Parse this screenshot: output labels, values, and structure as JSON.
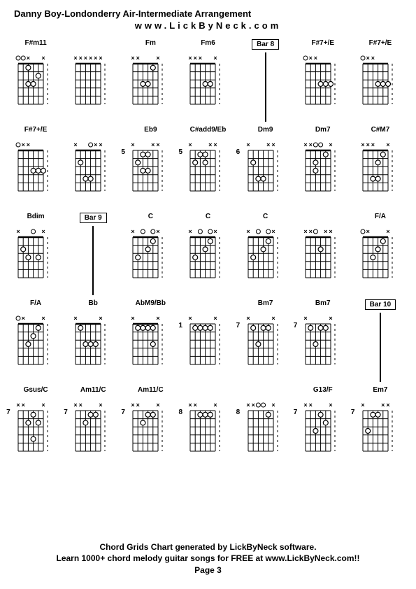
{
  "title": "Danny Boy-Londonderry Air-Intermediate Arrangement",
  "url": "www.LickByNeck.com",
  "footer_line1": "Chord Grids Chart generated by LickByNeck software.",
  "footer_line2": "Learn 1000+ chord melody guitar songs for FREE at www.LickByNeck.com!!",
  "page_label": "Page 3",
  "colors": {
    "bg": "#ffffff",
    "line": "#000000",
    "dot_fill": "#000000",
    "dot_stroke": "#000000",
    "open_fill": "#ffffff"
  },
  "diagram_style": {
    "strings": 6,
    "frets": 5,
    "width": 50,
    "height": 80,
    "dot_radius": 3.5,
    "stroke_width": 1
  },
  "cells": [
    {
      "type": "chord",
      "label": "F#m11",
      "fret": "",
      "mutes": [
        0,
        0,
        1,
        0,
        0,
        1
      ],
      "opens": [
        1,
        0
      ],
      "dots": [
        [
          1,
          2
        ],
        [
          2,
          4
        ],
        [
          3,
          2
        ],
        [
          3,
          3
        ]
      ]
    },
    {
      "type": "chord",
      "label": "",
      "fret": "",
      "mutes": [
        1,
        1,
        1,
        1,
        1,
        1
      ],
      "opens": [],
      "dots": []
    },
    {
      "type": "chord",
      "label": "Fm",
      "fret": "",
      "mutes": [
        1,
        1,
        0,
        0,
        0,
        1
      ],
      "opens": [],
      "dots": [
        [
          1,
          4
        ],
        [
          3,
          2
        ],
        [
          3,
          3
        ]
      ]
    },
    {
      "type": "chord",
      "label": "Fm6",
      "fret": "",
      "mutes": [
        1,
        1,
        1,
        0,
        0,
        1
      ],
      "opens": [],
      "dots": [
        [
          3,
          3
        ],
        [
          3,
          4
        ]
      ]
    },
    {
      "type": "bar",
      "label": "Bar 8"
    },
    {
      "type": "chord",
      "label": "F#7+/E",
      "fret": "",
      "mutes": [
        1,
        1,
        1,
        0,
        0,
        0
      ],
      "opens": [
        0
      ],
      "dots": [
        [
          3,
          3
        ],
        [
          3,
          4
        ],
        [
          3,
          5
        ]
      ]
    },
    {
      "type": "chord",
      "label": "F#7+/E",
      "fret": "",
      "mutes": [
        1,
        1,
        1,
        0,
        0,
        0
      ],
      "opens": [
        0
      ],
      "dots": [
        [
          3,
          3
        ],
        [
          3,
          4
        ],
        [
          3,
          5
        ]
      ]
    },
    {
      "type": "chord",
      "label": "F#7+/E",
      "fret": "",
      "mutes": [
        1,
        1,
        1,
        0,
        0,
        0
      ],
      "opens": [
        0
      ],
      "dots": [
        [
          3,
          3
        ],
        [
          3,
          4
        ],
        [
          3,
          5
        ]
      ]
    },
    {
      "type": "chord",
      "label": "",
      "fret": "",
      "mutes": [
        1,
        0,
        0,
        0,
        1,
        1
      ],
      "opens": [
        3
      ],
      "dots": [
        [
          2,
          1
        ],
        [
          4,
          2
        ],
        [
          4,
          3
        ]
      ]
    },
    {
      "type": "chord",
      "label": "Eb9",
      "fret": "5",
      "mutes": [
        1,
        0,
        0,
        0,
        1,
        1
      ],
      "opens": [],
      "dots": [
        [
          1,
          2
        ],
        [
          1,
          3
        ],
        [
          2,
          1
        ],
        [
          3,
          2
        ],
        [
          3,
          3
        ]
      ]
    },
    {
      "type": "chord",
      "label": "C#add9/Eb",
      "fret": "5",
      "mutes": [
        1,
        0,
        0,
        0,
        1,
        1
      ],
      "opens": [],
      "dots": [
        [
          1,
          2
        ],
        [
          1,
          3
        ],
        [
          2,
          1
        ],
        [
          2,
          3
        ]
      ]
    },
    {
      "type": "chord",
      "label": "Dm9",
      "fret": "6",
      "mutes": [
        1,
        0,
        0,
        0,
        1,
        1
      ],
      "opens": [],
      "dots": [
        [
          2,
          1
        ],
        [
          4,
          2
        ],
        [
          4,
          3
        ]
      ]
    },
    {
      "type": "chord",
      "label": "Dm7",
      "fret": "",
      "mutes": [
        1,
        1,
        0,
        0,
        0,
        1
      ],
      "opens": [
        2,
        3
      ],
      "dots": [
        [
          1,
          4
        ],
        [
          2,
          2
        ],
        [
          3,
          2
        ]
      ]
    },
    {
      "type": "chord",
      "label": "C#M7",
      "fret": "",
      "mutes": [
        1,
        1,
        1,
        0,
        0,
        1
      ],
      "opens": [],
      "dots": [
        [
          1,
          4
        ],
        [
          2,
          3
        ],
        [
          4,
          2
        ],
        [
          4,
          3
        ]
      ]
    },
    {
      "type": "chord",
      "label": "Bdim",
      "fret": "",
      "mutes": [
        1,
        0,
        0,
        0,
        0,
        1
      ],
      "opens": [
        3
      ],
      "dots": [
        [
          2,
          1
        ],
        [
          3,
          2
        ],
        [
          3,
          4
        ]
      ]
    },
    {
      "type": "bar",
      "label": "Bar 9"
    },
    {
      "type": "chord",
      "label": "C",
      "fret": "",
      "mutes": [
        1,
        0,
        0,
        0,
        0,
        1
      ],
      "opens": [
        2,
        4
      ],
      "dots": [
        [
          1,
          4
        ],
        [
          2,
          3
        ],
        [
          3,
          1
        ]
      ]
    },
    {
      "type": "chord",
      "label": "C",
      "fret": "",
      "mutes": [
        1,
        0,
        0,
        0,
        0,
        1
      ],
      "opens": [
        2,
        4
      ],
      "dots": [
        [
          1,
          4
        ],
        [
          2,
          3
        ],
        [
          3,
          1
        ]
      ]
    },
    {
      "type": "chord",
      "label": "C",
      "fret": "",
      "mutes": [
        1,
        0,
        0,
        0,
        0,
        1
      ],
      "opens": [
        2,
        4
      ],
      "dots": [
        [
          1,
          4
        ],
        [
          2,
          3
        ],
        [
          3,
          1
        ]
      ]
    },
    {
      "type": "chord",
      "label": "",
      "fret": "",
      "mutes": [
        1,
        1,
        0,
        0,
        1,
        1
      ],
      "opens": [
        2
      ],
      "dots": [
        [
          2,
          3
        ]
      ]
    },
    {
      "type": "chord",
      "label": "F/A",
      "fret": "",
      "mutes": [
        0,
        1,
        0,
        0,
        0,
        1
      ],
      "opens": [
        0
      ],
      "dots": [
        [
          1,
          4
        ],
        [
          2,
          3
        ],
        [
          3,
          2
        ]
      ]
    },
    {
      "type": "chord",
      "label": "F/A",
      "fret": "",
      "mutes": [
        0,
        1,
        0,
        0,
        0,
        1
      ],
      "opens": [
        0
      ],
      "dots": [
        [
          1,
          4
        ],
        [
          2,
          3
        ],
        [
          3,
          2
        ]
      ]
    },
    {
      "type": "chord",
      "label": "Bb",
      "fret": "",
      "mutes": [
        1,
        0,
        0,
        0,
        0,
        1
      ],
      "opens": [],
      "dots": [
        [
          1,
          1
        ],
        [
          3,
          2
        ],
        [
          3,
          3
        ],
        [
          3,
          4
        ]
      ]
    },
    {
      "type": "chord",
      "label": "AbM9/Bb",
      "fret": "",
      "mutes": [
        1,
        0,
        0,
        0,
        0,
        1
      ],
      "opens": [],
      "dots": [
        [
          1,
          1
        ],
        [
          1,
          2
        ],
        [
          1,
          3
        ],
        [
          1,
          4
        ],
        [
          3,
          4
        ]
      ]
    },
    {
      "type": "chord",
      "label": "",
      "fret": "1",
      "mutes": [
        1,
        0,
        0,
        0,
        0,
        1
      ],
      "opens": [],
      "dots": [
        [
          1,
          1
        ],
        [
          1,
          2
        ],
        [
          1,
          3
        ],
        [
          1,
          4
        ]
      ]
    },
    {
      "type": "chord",
      "label": "Bm7",
      "fret": "7",
      "mutes": [
        1,
        0,
        0,
        0,
        0,
        1
      ],
      "opens": [],
      "dots": [
        [
          1,
          1
        ],
        [
          1,
          3
        ],
        [
          1,
          4
        ],
        [
          3,
          2
        ]
      ]
    },
    {
      "type": "chord",
      "label": "Bm7",
      "fret": "7",
      "mutes": [
        1,
        0,
        0,
        0,
        0,
        1
      ],
      "opens": [],
      "dots": [
        [
          1,
          1
        ],
        [
          1,
          3
        ],
        [
          1,
          4
        ],
        [
          3,
          2
        ]
      ]
    },
    {
      "type": "bar",
      "label": "Bar 10"
    },
    {
      "type": "chord",
      "label": "Gsus/C",
      "fret": "7",
      "mutes": [
        1,
        1,
        0,
        0,
        0,
        1
      ],
      "opens": [],
      "dots": [
        [
          1,
          3
        ],
        [
          2,
          2
        ],
        [
          2,
          4
        ],
        [
          4,
          3
        ]
      ]
    },
    {
      "type": "chord",
      "label": "Am11/C",
      "fret": "7",
      "mutes": [
        1,
        1,
        0,
        0,
        0,
        1
      ],
      "opens": [],
      "dots": [
        [
          1,
          3
        ],
        [
          1,
          4
        ],
        [
          2,
          2
        ]
      ]
    },
    {
      "type": "chord",
      "label": "Am11/C",
      "fret": "7",
      "mutes": [
        1,
        1,
        0,
        0,
        0,
        1
      ],
      "opens": [],
      "dots": [
        [
          1,
          3
        ],
        [
          1,
          4
        ],
        [
          2,
          2
        ]
      ]
    },
    {
      "type": "chord",
      "label": "",
      "fret": "8",
      "mutes": [
        1,
        1,
        0,
        0,
        0,
        1
      ],
      "opens": [],
      "dots": [
        [
          1,
          2
        ],
        [
          1,
          3
        ],
        [
          1,
          4
        ]
      ]
    },
    {
      "type": "chord",
      "label": "",
      "fret": "8",
      "mutes": [
        1,
        1,
        0,
        0,
        0,
        1
      ],
      "opens": [
        2,
        3
      ],
      "dots": [
        [
          1,
          4
        ]
      ]
    },
    {
      "type": "chord",
      "label": "G13/F",
      "fret": "7",
      "mutes": [
        1,
        1,
        0,
        0,
        0,
        1
      ],
      "opens": [],
      "dots": [
        [
          1,
          3
        ],
        [
          2,
          4
        ],
        [
          3,
          2
        ]
      ]
    },
    {
      "type": "chord",
      "label": "Em7",
      "fret": "7",
      "mutes": [
        1,
        0,
        0,
        0,
        1,
        1
      ],
      "opens": [],
      "dots": [
        [
          1,
          2
        ],
        [
          1,
          3
        ],
        [
          3,
          1
        ]
      ]
    }
  ]
}
